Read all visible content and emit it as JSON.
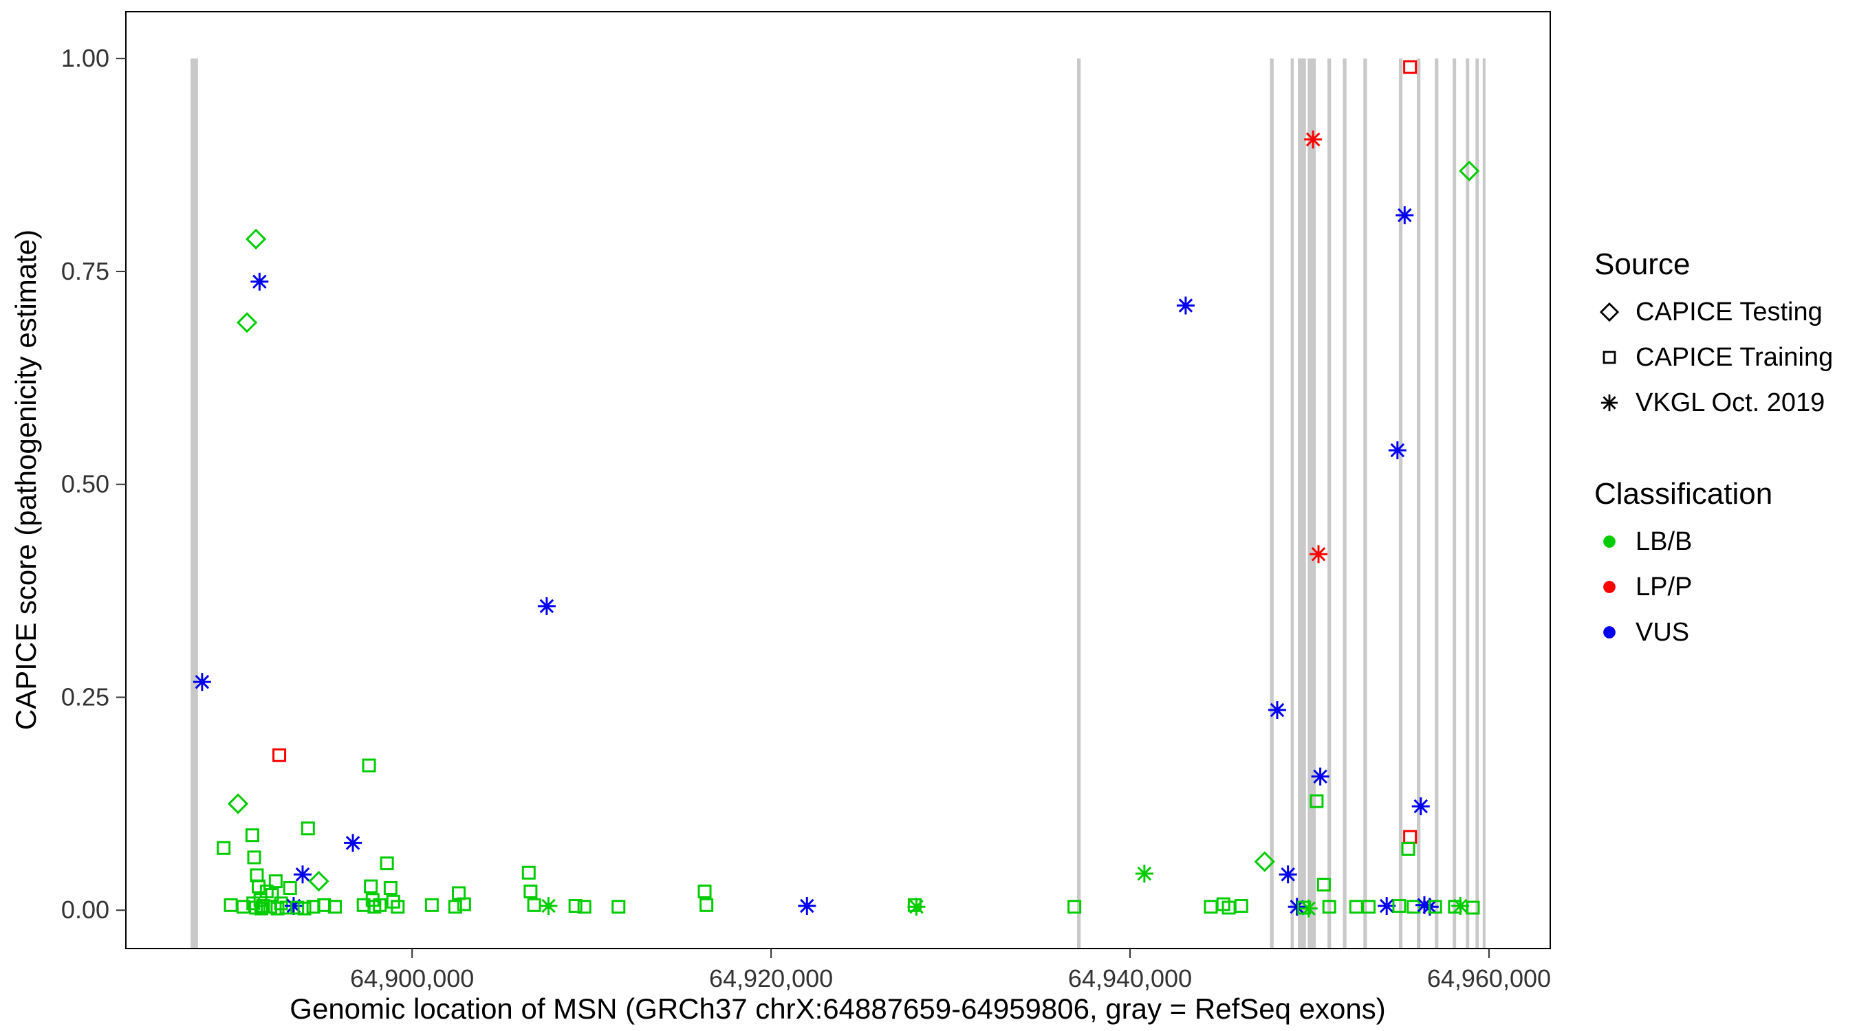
{
  "legend": {
    "source": {
      "title": "Source",
      "items": [
        {
          "label": "CAPICE Testing",
          "shape": "diamond"
        },
        {
          "label": "CAPICE Training",
          "shape": "square"
        },
        {
          "label": "VKGL Oct. 2019",
          "shape": "asterisk"
        }
      ]
    },
    "classification": {
      "title": "Classification",
      "items": [
        {
          "label": "LB/B",
          "color_key": "LB/B"
        },
        {
          "label": "LP/P",
          "color_key": "LP/P"
        },
        {
          "label": "VUS",
          "color_key": "VUS"
        }
      ]
    }
  },
  "colors": {
    "LB/B": "#00CC00",
    "LP/P": "#FF0000",
    "VUS": "#0000EE",
    "exon_gray": "#C9C9C9",
    "axis_text": "#333333",
    "axis_line": "#000000"
  },
  "chart_data": {
    "type": "scatter",
    "title": "",
    "xlabel": "Genomic location of MSN (GRCh37 chrX:64887659-64959806, gray = RefSeq exons)",
    "ylabel": "CAPICE score (pathogenicity estimate)",
    "xlim": [
      64884052,
      64963413
    ],
    "ylim": [
      -0.045,
      1.055
    ],
    "x_tick_values": [
      64900000,
      64920000,
      64940000,
      64960000
    ],
    "x_tick_labels": [
      "64,900,000",
      "64,920,000",
      "64,940,000",
      "64,960,000"
    ],
    "y_tick_values": [
      0,
      0.25,
      0.5,
      0.75,
      1
    ],
    "y_tick_labels": [
      "0.00",
      "0.25",
      "0.50",
      "0.75",
      "1.00"
    ],
    "grid": false,
    "legend_position": "right",
    "shape_by_source": {
      "testing": "diamond",
      "training": "square",
      "vkgl": "asterisk"
    },
    "source_labels": {
      "testing": "CAPICE Testing",
      "training": "CAPICE Training",
      "vkgl": "VKGL Oct. 2019"
    },
    "refseq_exons": [
      [
        64887659,
        64888069
      ],
      [
        64937050,
        64937250
      ],
      [
        64947800,
        64948000
      ],
      [
        64948950,
        64949120
      ],
      [
        64949350,
        64949800
      ],
      [
        64949900,
        64950350
      ],
      [
        64951000,
        64951200
      ],
      [
        64951860,
        64952060
      ],
      [
        64953000,
        64953200
      ],
      [
        64954980,
        64955180
      ],
      [
        64955980,
        64956180
      ],
      [
        64956980,
        64957180
      ],
      [
        64957980,
        64958170
      ],
      [
        64958710,
        64958900
      ],
      [
        64959250,
        64959430
      ],
      [
        64959650,
        64959806
      ]
    ],
    "points": {
      "columns": [
        "genomic_position",
        "capice_score",
        "source",
        "classification"
      ],
      "rows": [
        [
          64888300,
          0.268,
          "vkgl",
          "VUS"
        ],
        [
          64890300,
          0.125,
          "testing",
          "LB/B"
        ],
        [
          64890800,
          0.69,
          "testing",
          "LB/B"
        ],
        [
          64891300,
          0.788,
          "testing",
          "LB/B"
        ],
        [
          64891500,
          0.738,
          "vkgl",
          "VUS"
        ],
        [
          64892600,
          0.182,
          "training",
          "LP/P"
        ],
        [
          64889500,
          0.073,
          "training",
          "LB/B"
        ],
        [
          64889900,
          0.006,
          "training",
          "LB/B"
        ],
        [
          64890600,
          0.004,
          "training",
          "LB/B"
        ],
        [
          64891100,
          0.088,
          "training",
          "LB/B"
        ],
        [
          64891150,
          0.008,
          "training",
          "LB/B"
        ],
        [
          64891200,
          0.062,
          "training",
          "LB/B"
        ],
        [
          64891300,
          0.003,
          "training",
          "LB/B"
        ],
        [
          64891350,
          0.041,
          "training",
          "LB/B"
        ],
        [
          64891450,
          0.028,
          "training",
          "LB/B"
        ],
        [
          64891550,
          0.012,
          "training",
          "LB/B"
        ],
        [
          64891600,
          0.002,
          "training",
          "LB/B"
        ],
        [
          64891700,
          0.005,
          "training",
          "LB/B"
        ],
        [
          64891900,
          0.022,
          "training",
          "LB/B"
        ],
        [
          64892100,
          0.004,
          "training",
          "LB/B"
        ],
        [
          64892200,
          0.018,
          "training",
          "LB/B"
        ],
        [
          64892400,
          0.034,
          "training",
          "LB/B"
        ],
        [
          64892500,
          0.002,
          "training",
          "LB/B"
        ],
        [
          64892700,
          0.008,
          "training",
          "LB/B"
        ],
        [
          64893000,
          0.003,
          "training",
          "LB/B"
        ],
        [
          64893200,
          0.026,
          "training",
          "LB/B"
        ],
        [
          64893400,
          0.005,
          "vkgl",
          "VUS"
        ],
        [
          64893600,
          0.003,
          "training",
          "LB/B"
        ],
        [
          64893900,
          0.042,
          "vkgl",
          "VUS"
        ],
        [
          64894000,
          0.002,
          "training",
          "LB/B"
        ],
        [
          64894200,
          0.096,
          "training",
          "LB/B"
        ],
        [
          64894500,
          0.004,
          "training",
          "LB/B"
        ],
        [
          64894800,
          0.034,
          "testing",
          "LB/B"
        ],
        [
          64895100,
          0.006,
          "training",
          "LB/B"
        ],
        [
          64895700,
          0.004,
          "training",
          "LB/B"
        ],
        [
          64896700,
          0.079,
          "vkgl",
          "VUS"
        ],
        [
          64897300,
          0.006,
          "training",
          "LB/B"
        ],
        [
          64897600,
          0.17,
          "training",
          "LB/B"
        ],
        [
          64897700,
          0.028,
          "training",
          "LB/B"
        ],
        [
          64897800,
          0.012,
          "training",
          "LB/B"
        ],
        [
          64897900,
          0.004,
          "training",
          "LB/B"
        ],
        [
          64898200,
          0.006,
          "training",
          "LB/B"
        ],
        [
          64898600,
          0.055,
          "training",
          "LB/B"
        ],
        [
          64898800,
          0.026,
          "training",
          "LB/B"
        ],
        [
          64898950,
          0.01,
          "training",
          "LB/B"
        ],
        [
          64899200,
          0.004,
          "training",
          "LB/B"
        ],
        [
          64901100,
          0.006,
          "training",
          "LB/B"
        ],
        [
          64902400,
          0.004,
          "training",
          "LB/B"
        ],
        [
          64902600,
          0.02,
          "training",
          "LB/B"
        ],
        [
          64902900,
          0.007,
          "training",
          "LB/B"
        ],
        [
          64906500,
          0.044,
          "training",
          "LB/B"
        ],
        [
          64906600,
          0.022,
          "training",
          "LB/B"
        ],
        [
          64906800,
          0.006,
          "training",
          "LB/B"
        ],
        [
          64907500,
          0.357,
          "vkgl",
          "VUS"
        ],
        [
          64907600,
          0.005,
          "vkgl",
          "LB/B"
        ],
        [
          64909100,
          0.005,
          "training",
          "LB/B"
        ],
        [
          64909600,
          0.004,
          "training",
          "LB/B"
        ],
        [
          64911500,
          0.004,
          "training",
          "LB/B"
        ],
        [
          64916300,
          0.022,
          "training",
          "LB/B"
        ],
        [
          64916400,
          0.006,
          "training",
          "LB/B"
        ],
        [
          64922000,
          0.005,
          "vkgl",
          "VUS"
        ],
        [
          64928000,
          0.006,
          "training",
          "LB/B"
        ],
        [
          64928100,
          0.004,
          "vkgl",
          "LB/B"
        ],
        [
          64936900,
          0.004,
          "training",
          "LB/B"
        ],
        [
          64940800,
          0.043,
          "vkgl",
          "LB/B"
        ],
        [
          64943100,
          0.71,
          "vkgl",
          "VUS"
        ],
        [
          64944500,
          0.004,
          "training",
          "LB/B"
        ],
        [
          64945200,
          0.007,
          "training",
          "LB/B"
        ],
        [
          64945500,
          0.003,
          "training",
          "LB/B"
        ],
        [
          64946200,
          0.005,
          "training",
          "LB/B"
        ],
        [
          64947500,
          0.057,
          "testing",
          "LB/B"
        ],
        [
          64948200,
          0.235,
          "vkgl",
          "VUS"
        ],
        [
          64948800,
          0.042,
          "vkgl",
          "VUS"
        ],
        [
          64949300,
          0.004,
          "vkgl",
          "VUS"
        ],
        [
          64949700,
          0.003,
          "training",
          "LB/B"
        ],
        [
          64949950,
          0.002,
          "vkgl",
          "LB/B"
        ],
        [
          64950200,
          0.905,
          "vkgl",
          "LP/P"
        ],
        [
          64950500,
          0.418,
          "vkgl",
          "LP/P"
        ],
        [
          64950600,
          0.157,
          "vkgl",
          "VUS"
        ],
        [
          64950400,
          0.128,
          "training",
          "LB/B"
        ],
        [
          64950800,
          0.03,
          "training",
          "LB/B"
        ],
        [
          64951100,
          0.004,
          "training",
          "LB/B"
        ],
        [
          64952600,
          0.004,
          "training",
          "LB/B"
        ],
        [
          64953300,
          0.004,
          "training",
          "LB/B"
        ],
        [
          64954300,
          0.005,
          "vkgl",
          "VUS"
        ],
        [
          64954900,
          0.54,
          "vkgl",
          "VUS"
        ],
        [
          64955000,
          0.005,
          "training",
          "LB/B"
        ],
        [
          64955300,
          0.816,
          "vkgl",
          "VUS"
        ],
        [
          64955600,
          0.99,
          "training",
          "LP/P"
        ],
        [
          64955600,
          0.086,
          "training",
          "LP/P"
        ],
        [
          64955500,
          0.072,
          "training",
          "LB/B"
        ],
        [
          64955800,
          0.004,
          "training",
          "LB/B"
        ],
        [
          64956200,
          0.122,
          "vkgl",
          "VUS"
        ],
        [
          64956400,
          0.006,
          "vkgl",
          "VUS"
        ],
        [
          64956700,
          0.004,
          "vkgl",
          "VUS"
        ],
        [
          64957000,
          0.004,
          "training",
          "LB/B"
        ],
        [
          64958100,
          0.004,
          "training",
          "LB/B"
        ],
        [
          64958400,
          0.005,
          "vkgl",
          "LB/B"
        ],
        [
          64958900,
          0.868,
          "testing",
          "LB/B"
        ],
        [
          64959100,
          0.003,
          "training",
          "LB/B"
        ]
      ]
    }
  }
}
